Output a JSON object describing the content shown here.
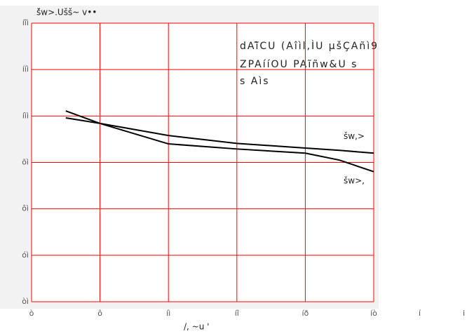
{
  "chart_data": {
    "type": "line",
    "title": "š̌w>.Ušš~ v••",
    "annotations": [
      "dAĩ̃CU (Aîìl,ÌU µšÇAñì9",
      "ZPAííOU PAĩñw&U s",
      "s Aìs"
    ],
    "x_label": "/, ~u '",
    "extra_labels": [
      "í",
      "i"
    ],
    "x": [
      7,
      8,
      10,
      12,
      14,
      15,
      16
    ],
    "series": [
      {
        "name": "šw,>",
        "color": "#000000",
        "values": [
          99.6,
          98.4,
          95.8,
          94.1,
          93.1,
          92.6,
          92.0
        ]
      },
      {
        "name": "šw>,",
        "color": "#000000",
        "values": [
          101.1,
          98.4,
          94.0,
          92.9,
          92.0,
          90.5,
          88.0
        ]
      }
    ],
    "xlim": [
      6,
      16
    ],
    "xticks": [
      {
        "value": 6,
        "label": "ò"
      },
      {
        "value": 8,
        "label": "ô"
      },
      {
        "value": 10,
        "label": "íì"
      },
      {
        "value": 12,
        "label": "íî"
      },
      {
        "value": 14,
        "label": "íð"
      },
      {
        "value": 16,
        "label": "íò"
      }
    ],
    "ylim": [
      60,
      120
    ],
    "yticks": [
      {
        "value": 60,
        "label": "òì"
      },
      {
        "value": 70,
        "label": "óì"
      },
      {
        "value": 80,
        "label": "ôì"
      },
      {
        "value": 90,
        "label": "õì"
      },
      {
        "value": 100,
        "label": "íìì"
      },
      {
        "value": 110,
        "label": "ííì"
      },
      {
        "value": 120,
        "label": "íîì"
      }
    ],
    "grid": true,
    "grid_color": "#ff0000"
  }
}
